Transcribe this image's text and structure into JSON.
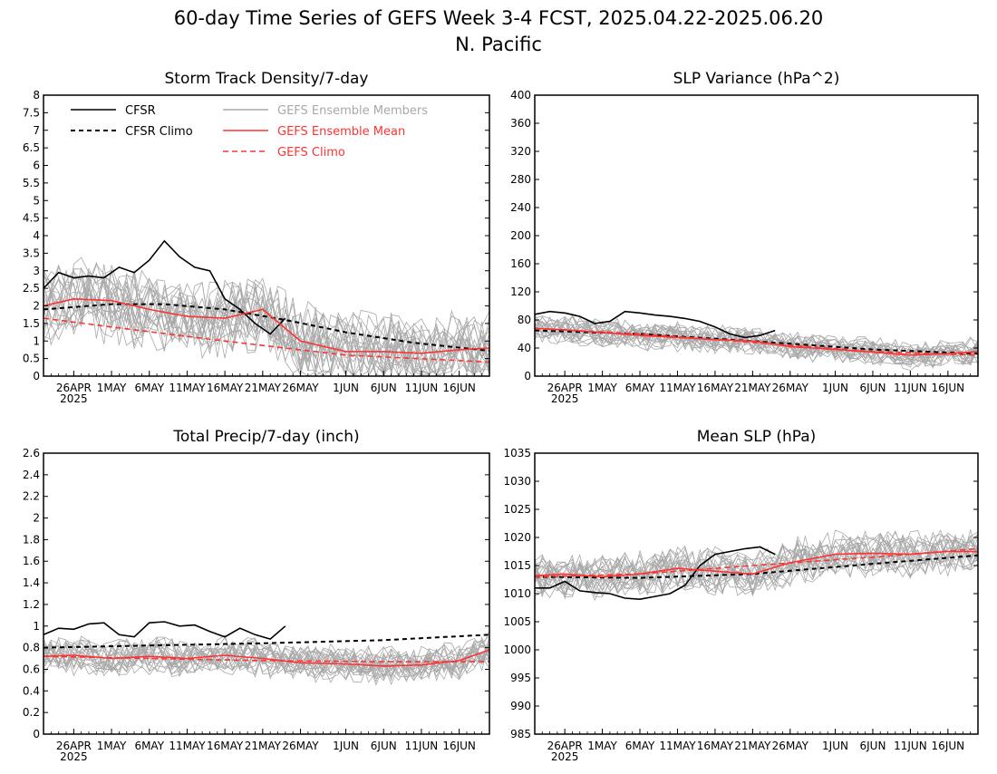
{
  "figure": {
    "title_line1": "60-day Time Series of GEFS Week 3-4 FCST, 2025.04.22-2025.06.20",
    "title_line2": "N. Pacific"
  },
  "colors": {
    "cfsr": "#000000",
    "members": "#a8a8a8",
    "ens_mean": "#ff3333",
    "gefs_climo": "#ff3333"
  },
  "legend": {
    "cfsr": "CFSR",
    "cfsr_climo": "CFSR Climo",
    "members": "GEFS Ensemble Members",
    "ens_mean": "GEFS Ensemble Mean",
    "gefs_climo": "GEFS Climo"
  },
  "x_axis": {
    "start_date": "2025-04-22",
    "end_date": "2025-06-20",
    "tick_labels": [
      "26APR",
      "1MAY",
      "6MAY",
      "11MAY",
      "16MAY",
      "21MAY",
      "26MAY",
      "1JUN",
      "6JUN",
      "11JUN",
      "16JUN"
    ],
    "tick_dates": [
      "2025-04-26",
      "2025-05-01",
      "2025-05-06",
      "2025-05-11",
      "2025-05-16",
      "2025-05-21",
      "2025-05-26",
      "2025-06-01",
      "2025-06-06",
      "2025-06-11",
      "2025-06-16"
    ],
    "year_label": "2025"
  },
  "chart_data": [
    {
      "type": "line",
      "title": "Storm Track Density/7-day",
      "ylim": [
        0,
        8
      ],
      "yticks": [
        "0",
        "0.5",
        "1",
        "1.5",
        "2",
        "2.5",
        "3",
        "3.5",
        "4",
        "4.5",
        "5",
        "5.5",
        "6",
        "6.5",
        "7",
        "7.5",
        "8"
      ],
      "legend_visible": true,
      "series": [
        {
          "name": "CFSR",
          "style": "solid-black",
          "x": [
            "2025-04-22",
            "2025-04-24",
            "2025-04-26",
            "2025-04-28",
            "2025-04-30",
            "2025-05-02",
            "2025-05-04",
            "2025-05-06",
            "2025-05-08",
            "2025-05-10",
            "2025-05-12",
            "2025-05-14",
            "2025-05-16",
            "2025-05-18",
            "2025-05-20",
            "2025-05-22",
            "2025-05-24"
          ],
          "y": [
            2.5,
            2.95,
            2.8,
            2.85,
            2.8,
            3.1,
            2.95,
            3.3,
            3.85,
            3.4,
            3.1,
            3.0,
            2.2,
            1.9,
            1.5,
            1.2,
            1.65
          ]
        },
        {
          "name": "CFSR Climo",
          "style": "dashed-black",
          "x": [
            "2025-04-22",
            "2025-05-01",
            "2025-05-08",
            "2025-05-16",
            "2025-05-24",
            "2025-06-01",
            "2025-06-10",
            "2025-06-20"
          ],
          "y": [
            1.9,
            2.05,
            2.05,
            1.9,
            1.6,
            1.25,
            0.95,
            0.72
          ]
        },
        {
          "name": "GEFS Ensemble Mean",
          "style": "solid-red",
          "x": [
            "2025-04-22",
            "2025-04-26",
            "2025-05-01",
            "2025-05-06",
            "2025-05-11",
            "2025-05-16",
            "2025-05-21",
            "2025-05-26",
            "2025-06-01",
            "2025-06-06",
            "2025-06-11",
            "2025-06-16",
            "2025-06-20"
          ],
          "y": [
            2.0,
            2.2,
            2.15,
            1.9,
            1.7,
            1.65,
            1.9,
            1.0,
            0.7,
            0.7,
            0.65,
            0.75,
            0.8
          ]
        },
        {
          "name": "GEFS Climo",
          "style": "dashed-red",
          "x": [
            "2025-04-22",
            "2025-05-01",
            "2025-05-16",
            "2025-06-01",
            "2025-06-20"
          ],
          "y": [
            1.65,
            1.4,
            1.0,
            0.6,
            0.4
          ]
        }
      ],
      "members": {
        "count": 21,
        "base": "GEFS Ensemble Mean",
        "spread": 0.9,
        "zero_floor": true
      }
    },
    {
      "type": "line",
      "title": "SLP Variance (hPa^2)",
      "ylim": [
        0,
        400
      ],
      "yticks": [
        "0",
        "40",
        "80",
        "120",
        "160",
        "200",
        "240",
        "280",
        "320",
        "360",
        "400"
      ],
      "legend_visible": false,
      "series": [
        {
          "name": "CFSR",
          "style": "solid-black",
          "x": [
            "2025-04-22",
            "2025-04-24",
            "2025-04-26",
            "2025-04-28",
            "2025-04-30",
            "2025-05-02",
            "2025-05-04",
            "2025-05-06",
            "2025-05-08",
            "2025-05-10",
            "2025-05-12",
            "2025-05-14",
            "2025-05-16",
            "2025-05-18",
            "2025-05-20",
            "2025-05-22",
            "2025-05-24"
          ],
          "y": [
            88,
            92,
            90,
            85,
            75,
            78,
            92,
            90,
            87,
            85,
            82,
            78,
            70,
            60,
            55,
            58,
            65
          ]
        },
        {
          "name": "CFSR Climo",
          "style": "dashed-black",
          "x": [
            "2025-04-22",
            "2025-05-06",
            "2025-05-21",
            "2025-06-06",
            "2025-06-20"
          ],
          "y": [
            65,
            60,
            50,
            38,
            32
          ]
        },
        {
          "name": "GEFS Ensemble Mean",
          "style": "solid-red",
          "x": [
            "2025-04-22",
            "2025-04-26",
            "2025-05-01",
            "2025-05-06",
            "2025-05-11",
            "2025-05-16",
            "2025-05-21",
            "2025-05-26",
            "2025-06-01",
            "2025-06-06",
            "2025-06-11",
            "2025-06-16",
            "2025-06-20"
          ],
          "y": [
            68,
            66,
            62,
            58,
            55,
            52,
            50,
            42,
            38,
            34,
            30,
            32,
            35
          ]
        },
        {
          "name": "GEFS Climo",
          "style": "dashed-red",
          "x": [
            "2025-04-22",
            "2025-05-06",
            "2025-05-21",
            "2025-06-06",
            "2025-06-20"
          ],
          "y": [
            68,
            60,
            48,
            35,
            30
          ]
        }
      ],
      "members": {
        "count": 21,
        "base": "GEFS Ensemble Mean",
        "spread": 16,
        "zero_floor": true
      }
    },
    {
      "type": "line",
      "title": "Total Precip/7-day (inch)",
      "ylim": [
        0,
        2.6
      ],
      "yticks": [
        "0",
        "0.2",
        "0.4",
        "0.6",
        "0.8",
        "1",
        "1.2",
        "1.4",
        "1.6",
        "1.8",
        "2",
        "2.2",
        "2.4",
        "2.6"
      ],
      "legend_visible": false,
      "series": [
        {
          "name": "CFSR",
          "style": "solid-black",
          "x": [
            "2025-04-22",
            "2025-04-24",
            "2025-04-26",
            "2025-04-28",
            "2025-04-30",
            "2025-05-02",
            "2025-05-04",
            "2025-05-06",
            "2025-05-08",
            "2025-05-10",
            "2025-05-12",
            "2025-05-14",
            "2025-05-16",
            "2025-05-18",
            "2025-05-20",
            "2025-05-22",
            "2025-05-24"
          ],
          "y": [
            0.92,
            0.98,
            0.97,
            1.02,
            1.03,
            0.92,
            0.9,
            1.03,
            1.04,
            1.0,
            1.01,
            0.95,
            0.9,
            0.98,
            0.92,
            0.88,
            1.0
          ]
        },
        {
          "name": "CFSR Climo",
          "style": "dashed-black",
          "x": [
            "2025-04-22",
            "2025-05-06",
            "2025-05-21",
            "2025-06-06",
            "2025-06-20"
          ],
          "y": [
            0.8,
            0.82,
            0.84,
            0.87,
            0.92
          ]
        },
        {
          "name": "GEFS Ensemble Mean",
          "style": "solid-red",
          "x": [
            "2025-04-22",
            "2025-04-26",
            "2025-05-01",
            "2025-05-06",
            "2025-05-11",
            "2025-05-16",
            "2025-05-21",
            "2025-05-26",
            "2025-06-01",
            "2025-06-06",
            "2025-06-11",
            "2025-06-16",
            "2025-06-20"
          ],
          "y": [
            0.72,
            0.73,
            0.7,
            0.72,
            0.7,
            0.73,
            0.7,
            0.66,
            0.65,
            0.63,
            0.64,
            0.68,
            0.78
          ]
        },
        {
          "name": "GEFS Climo",
          "style": "dashed-red",
          "x": [
            "2025-04-22",
            "2025-05-06",
            "2025-05-21",
            "2025-06-06",
            "2025-06-20"
          ],
          "y": [
            0.72,
            0.7,
            0.68,
            0.67,
            0.67
          ]
        }
      ],
      "members": {
        "count": 21,
        "base": "GEFS Ensemble Mean",
        "spread": 0.14,
        "zero_floor": true
      }
    },
    {
      "type": "line",
      "title": "Mean SLP (hPa)",
      "ylim": [
        985,
        1035
      ],
      "yticks": [
        "985",
        "990",
        "995",
        "1000",
        "1005",
        "1010",
        "1015",
        "1020",
        "1025",
        "1030",
        "1035"
      ],
      "legend_visible": false,
      "series": [
        {
          "name": "CFSR",
          "style": "solid-black",
          "x": [
            "2025-04-22",
            "2025-04-24",
            "2025-04-26",
            "2025-04-28",
            "2025-04-30",
            "2025-05-02",
            "2025-05-04",
            "2025-05-06",
            "2025-05-08",
            "2025-05-10",
            "2025-05-12",
            "2025-05-14",
            "2025-05-16",
            "2025-05-18",
            "2025-05-20",
            "2025-05-22",
            "2025-05-24"
          ],
          "y": [
            1011,
            1011,
            1012.2,
            1010.5,
            1010.2,
            1010,
            1009.2,
            1009,
            1009.5,
            1010,
            1011.5,
            1015,
            1017,
            1017.5,
            1018,
            1018.3,
            1017
          ]
        },
        {
          "name": "CFSR Climo",
          "style": "dashed-black",
          "x": [
            "2025-04-22",
            "2025-05-06",
            "2025-05-21",
            "2025-06-06",
            "2025-06-20"
          ],
          "y": [
            1013,
            1012.8,
            1013.5,
            1015.3,
            1016.8
          ]
        },
        {
          "name": "GEFS Ensemble Mean",
          "style": "solid-red",
          "x": [
            "2025-04-22",
            "2025-04-26",
            "2025-05-01",
            "2025-05-06",
            "2025-05-11",
            "2025-05-16",
            "2025-05-21",
            "2025-05-26",
            "2025-06-01",
            "2025-06-06",
            "2025-06-11",
            "2025-06-16",
            "2025-06-20"
          ],
          "y": [
            1013.2,
            1013.5,
            1013.0,
            1013.5,
            1014.5,
            1014.0,
            1013.5,
            1015.5,
            1017.0,
            1017.2,
            1017.0,
            1017.5,
            1017.5
          ]
        },
        {
          "name": "GEFS Climo",
          "style": "dashed-red",
          "x": [
            "2025-04-22",
            "2025-05-06",
            "2025-05-21",
            "2025-06-06",
            "2025-06-20"
          ],
          "y": [
            1013,
            1013.5,
            1015,
            1016.5,
            1018
          ]
        }
      ],
      "members": {
        "count": 21,
        "base": "GEFS Ensemble Mean",
        "spread": 3.2,
        "zero_floor": false
      }
    }
  ]
}
